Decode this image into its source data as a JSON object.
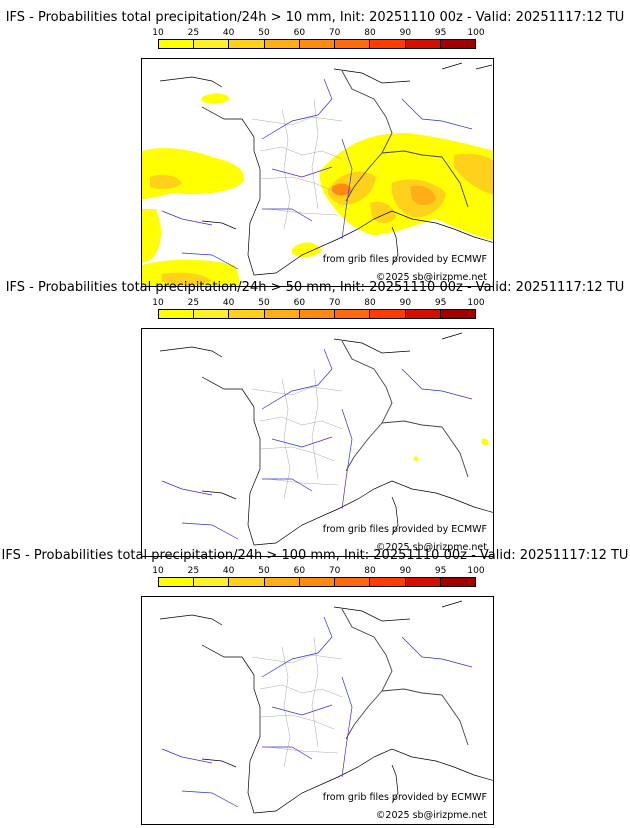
{
  "scale": {
    "ticks": [
      "10",
      "25",
      "40",
      "50",
      "60",
      "70",
      "80",
      "90",
      "95",
      "100"
    ],
    "colors": [
      "#ffff00",
      "#fff02a",
      "#ffd11a",
      "#ffae17",
      "#ff8a10",
      "#ff6b0c",
      "#ff3b00",
      "#d30f00",
      "#a00000",
      "#6d0000"
    ]
  },
  "panels": [
    {
      "title": "IFS - Probabilities total precipitation/24h > 10 mm, Init: 20251110 00z - Valid: 20251117:12 TU",
      "credit_source": "from grib files provided by ECMWF",
      "credit_copyright": "©2025 sb@irizpme.net"
    },
    {
      "title": "IFS - Probabilities total precipitation/24h > 50 mm, Init: 20251110 00z - Valid: 20251117:12 TU",
      "credit_source": "from grib files provided by ECMWF",
      "credit_copyright": "©2025 sb@irizpme.net"
    },
    {
      "title": "IFS - Probabilities total precipitation/24h > 100 mm, Init: 20251110 00z - Valid: 20251117:12 TU",
      "credit_source": "from grib files provided by ECMWF",
      "credit_copyright": "©2025 sb@irizpme.net"
    }
  ]
}
